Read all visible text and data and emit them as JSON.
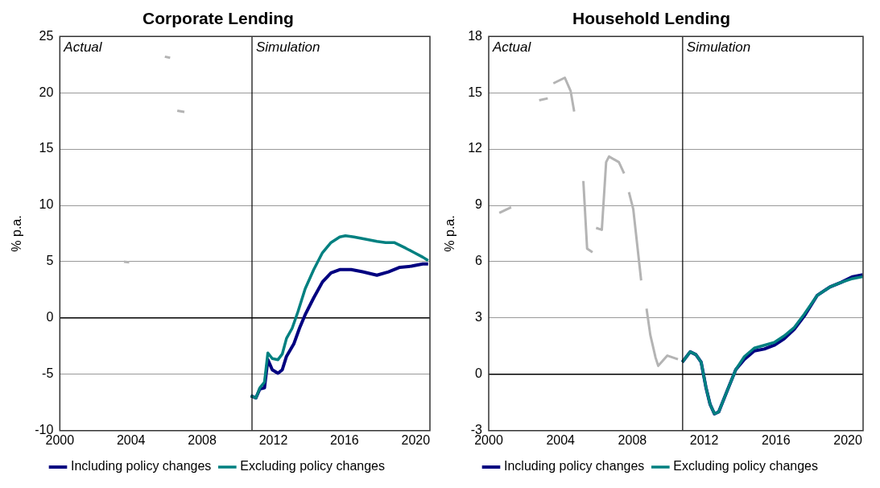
{
  "chart_data": [
    {
      "type": "line",
      "title": "Corporate Lending",
      "ylabel": "% p.a.",
      "xlim": [
        2000,
        2020.8
      ],
      "xticks": [
        2000,
        2004,
        2008,
        2012,
        2016,
        2020
      ],
      "ylim": [
        -10,
        25
      ],
      "yticks": [
        -10,
        -5,
        0,
        5,
        10,
        15,
        20,
        25
      ],
      "grid": "y",
      "legend": "bottom",
      "marker": "none",
      "ref_lines": [
        {
          "axis": "x",
          "value": 2010.8,
          "color": "#000000"
        }
      ],
      "annotations": [
        "Actual",
        "Simulation"
      ],
      "series": [
        {
          "color": "#b4b4b4",
          "x": [
            2003.6,
            2003.9,
            2004.5,
            2005.9,
            2006.2,
            2006.4,
            2006.6,
            2007.0
          ],
          "values": [
            5.0,
            4.95,
            null,
            23.2,
            23.1,
            null,
            18.4,
            18.3
          ]
        },
        {
          "name": "Including policy changes",
          "color": "#000080",
          "x": [
            2010.73,
            2011.02,
            2011.24,
            2011.5,
            2011.69,
            2011.94,
            2012.26,
            2012.5,
            2012.74,
            2013.15,
            2013.47,
            2013.79,
            2014.27,
            2014.76,
            2015.24,
            2015.73,
            2016.37,
            2017.02,
            2017.82,
            2018.47,
            2019.11,
            2019.76,
            2020.4,
            2020.7
          ],
          "values": [
            -6.9,
            -7.1,
            -6.3,
            -6.2,
            -3.7,
            -4.6,
            -4.9,
            -4.6,
            -3.4,
            -2.3,
            -0.9,
            0.3,
            1.8,
            3.2,
            4.0,
            4.3,
            4.3,
            4.1,
            3.8,
            4.1,
            4.5,
            4.6,
            4.8,
            4.8
          ]
        },
        {
          "name": "Excluding policy changes",
          "color": "#008080",
          "x": [
            2010.73,
            2011.02,
            2011.24,
            2011.5,
            2011.69,
            2011.94,
            2012.26,
            2012.5,
            2012.74,
            2013.06,
            2013.39,
            2013.79,
            2014.27,
            2014.76,
            2015.24,
            2015.73,
            2016.05,
            2016.53,
            2017.18,
            2017.82,
            2018.31,
            2018.79,
            2019.44,
            2019.92,
            2020.4,
            2020.7
          ],
          "values": [
            -6.9,
            -7.1,
            -6.2,
            -5.7,
            -3.1,
            -3.6,
            -3.7,
            -3.2,
            -1.8,
            -0.9,
            0.6,
            2.6,
            4.3,
            5.8,
            6.7,
            7.2,
            7.3,
            7.2,
            7.0,
            6.8,
            6.7,
            6.7,
            6.2,
            5.8,
            5.4,
            5.1
          ]
        }
      ]
    },
    {
      "type": "line",
      "title": "Household Lending",
      "ylabel": "% p.a.",
      "xlim": [
        2000,
        2020.85
      ],
      "xticks": [
        2000,
        2004,
        2008,
        2012,
        2016,
        2020
      ],
      "ylim": [
        -3,
        18
      ],
      "yticks": [
        -3,
        0,
        3,
        6,
        9,
        12,
        15,
        18
      ],
      "grid": "y",
      "legend": "bottom",
      "marker": "none",
      "ref_lines": [
        {
          "axis": "x",
          "value": 2010.8,
          "color": "#000000"
        }
      ],
      "annotations": [
        "Actual",
        "Simulation"
      ],
      "series": [
        {
          "color": "#b4b4b4",
          "x": [
            2000.59,
            2001.25,
            2002.0,
            2002.81,
            2003.29,
            2003.45,
            2003.6,
            2004.24,
            2004.56,
            2004.76,
            2005.0,
            2005.27,
            2005.48,
            2005.78,
            2005.9,
            2005.98,
            2006.3,
            2006.54,
            2006.7,
            2007.25,
            2007.54,
            2007.7,
            2007.81,
            2008.05,
            2008.49,
            2008.6,
            2008.79,
            2009.0,
            2009.29,
            2009.44,
            2009.95,
            2010.54
          ],
          "values": [
            8.6,
            8.9,
            null,
            14.6,
            14.7,
            null,
            15.5,
            15.8,
            15.1,
            14.0,
            null,
            10.3,
            6.7,
            6.5,
            null,
            7.8,
            7.7,
            11.3,
            11.6,
            11.3,
            10.7,
            null,
            9.7,
            8.8,
            5.0,
            null,
            3.5,
            2.1,
            0.9,
            0.45,
            1.0,
            0.8
          ]
        },
        {
          "name": "Including policy changes",
          "color": "#000080",
          "x": [
            2010.78,
            2011.22,
            2011.54,
            2011.83,
            2012.1,
            2012.33,
            2012.57,
            2012.81,
            2013.29,
            2013.76,
            2014.24,
            2014.79,
            2015.35,
            2015.9,
            2016.46,
            2017.02,
            2017.57,
            2018.29,
            2019.0,
            2019.63,
            2020.27,
            2020.83
          ],
          "values": [
            0.65,
            1.2,
            1.05,
            0.65,
            -0.7,
            -1.6,
            -2.1,
            -2.0,
            -0.85,
            0.25,
            0.8,
            1.25,
            1.35,
            1.55,
            1.9,
            2.4,
            3.1,
            4.2,
            4.65,
            4.9,
            5.2,
            5.3
          ]
        },
        {
          "name": "Excluding policy changes",
          "color": "#008080",
          "x": [
            2010.78,
            2011.22,
            2011.54,
            2011.83,
            2012.1,
            2012.33,
            2012.57,
            2012.81,
            2013.29,
            2013.76,
            2014.24,
            2014.79,
            2015.35,
            2015.9,
            2016.46,
            2017.02,
            2017.57,
            2018.29,
            2019.0,
            2019.63,
            2020.27,
            2020.83
          ],
          "values": [
            0.65,
            1.2,
            1.05,
            0.65,
            -0.7,
            -1.6,
            -2.1,
            -2.0,
            -0.85,
            0.25,
            0.95,
            1.4,
            1.55,
            1.7,
            2.05,
            2.5,
            3.2,
            4.2,
            4.65,
            4.9,
            5.1,
            5.2
          ]
        }
      ]
    }
  ]
}
